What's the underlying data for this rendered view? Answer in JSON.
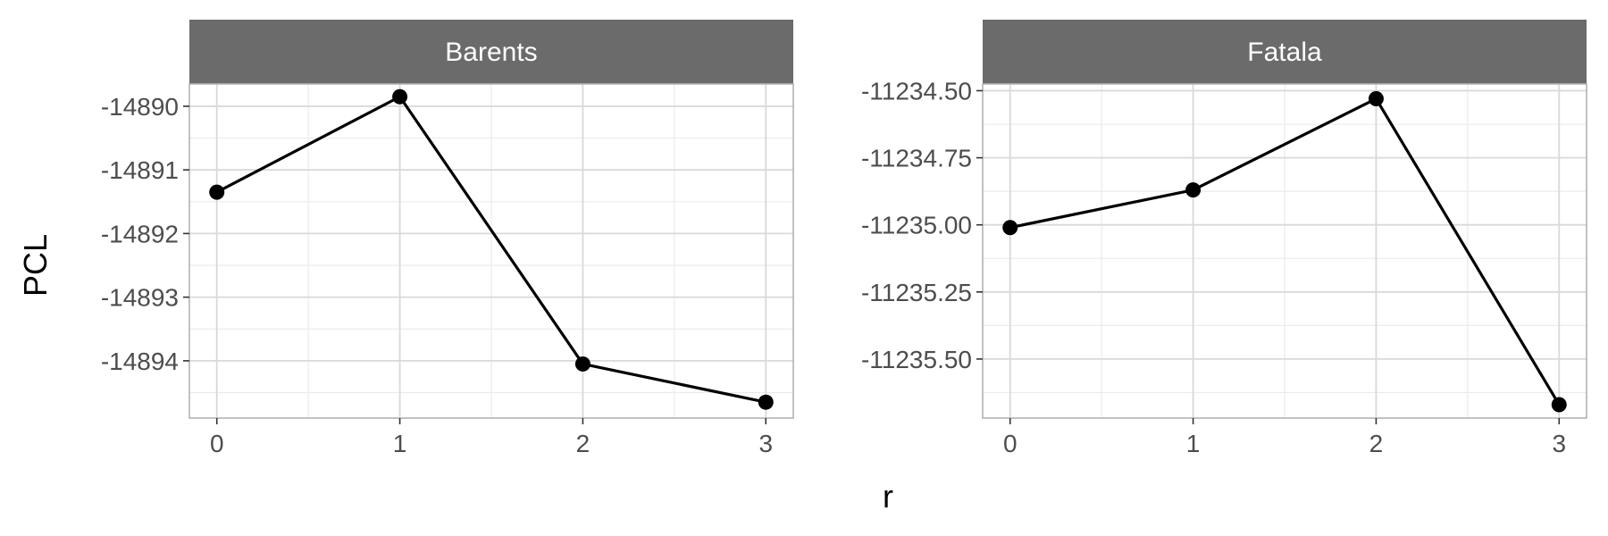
{
  "chart_data": {
    "type": "line",
    "xlabel": "r",
    "ylabel": "PCL",
    "colors": {
      "strip_fill": "#6b6b6b",
      "strip_text": "#ffffff",
      "panel_border": "#b3b3b3",
      "grid_major": "#d9d9d9",
      "grid_minor": "#ebebeb",
      "line": "#000000",
      "point": "#000000",
      "tick_text": "#4d4d4d"
    },
    "grid": true,
    "panels": [
      {
        "title": "Barents",
        "x": [
          0,
          1,
          2,
          3
        ],
        "y": [
          -14891.35,
          -14889.85,
          -14894.05,
          -14894.65
        ],
        "xlim": [
          -0.15,
          3.15
        ],
        "ylim": [
          -14894.9,
          -14889.65
        ],
        "x_ticks": [
          0,
          1,
          2,
          3
        ],
        "x_tick_labels": [
          "0",
          "1",
          "2",
          "3"
        ],
        "y_ticks": [
          -14890,
          -14891,
          -14892,
          -14893,
          -14894
        ],
        "y_tick_labels": [
          "-14890",
          "-14891",
          "-14892",
          "-14893",
          "-14894"
        ]
      },
      {
        "title": "Fatala",
        "x": [
          0,
          1,
          2,
          3
        ],
        "y": [
          -11235.01,
          -11234.87,
          -11234.53,
          -11235.67
        ],
        "xlim": [
          -0.15,
          3.15
        ],
        "ylim": [
          -11235.72,
          -11234.475
        ],
        "x_ticks": [
          0,
          1,
          2,
          3
        ],
        "x_tick_labels": [
          "0",
          "1",
          "2",
          "3"
        ],
        "y_ticks": [
          -11234.5,
          -11234.75,
          -11235.0,
          -11235.25,
          -11235.5
        ],
        "y_tick_labels": [
          "-11234.50",
          "-11234.75",
          "-11235.00",
          "-11235.25",
          "-11235.50"
        ]
      }
    ]
  }
}
